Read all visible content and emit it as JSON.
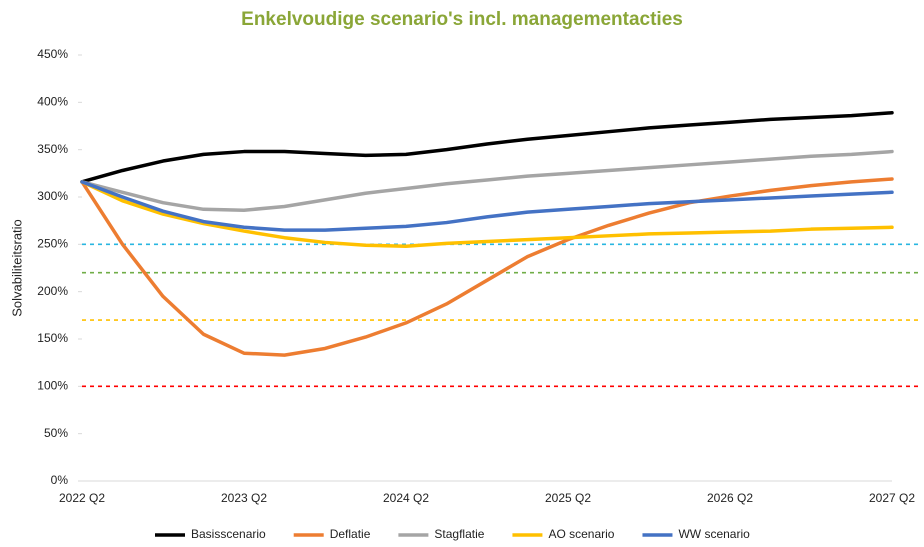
{
  "chart_data": {
    "type": "line",
    "title": "Enkelvoudige scenario's incl. managementacties",
    "y_label": "Solvabiliteitsratio",
    "categories": [
      "2022 Q2",
      null,
      null,
      null,
      "2023 Q2",
      null,
      null,
      null,
      "2024 Q2",
      null,
      null,
      null,
      "2025 Q2",
      null,
      null,
      null,
      "2026 Q2",
      null,
      null,
      null,
      "2027 Q2"
    ],
    "series": [
      {
        "name": "Basisscenario",
        "color": "#000000",
        "values": [
          316,
          328,
          338,
          345,
          348,
          348,
          346,
          344,
          345,
          350,
          356,
          361,
          365,
          369,
          373,
          376,
          379,
          382,
          384,
          386,
          389
        ]
      },
      {
        "name": "Deflatie",
        "color": "#ed7d31",
        "values": [
          316,
          250,
          195,
          155,
          135,
          133,
          140,
          152,
          167,
          187,
          212,
          237,
          255,
          270,
          283,
          294,
          301,
          307,
          312,
          316,
          319
        ]
      },
      {
        "name": "Stagflatie",
        "color": "#a5a5a5",
        "values": [
          316,
          305,
          294,
          287,
          286,
          290,
          297,
          304,
          309,
          314,
          318,
          322,
          325,
          328,
          331,
          334,
          337,
          340,
          343,
          345,
          348
        ]
      },
      {
        "name": "AO scenario",
        "color": "#ffc000",
        "values": [
          316,
          296,
          282,
          272,
          264,
          257,
          252,
          249,
          248,
          251,
          253,
          255,
          257,
          259,
          261,
          262,
          263,
          264,
          266,
          267,
          268
        ]
      },
      {
        "name": "WW scenario",
        "color": "#4472c4",
        "values": [
          316,
          300,
          285,
          274,
          268,
          265,
          265,
          267,
          269,
          273,
          279,
          284,
          287,
          290,
          293,
          295,
          297,
          299,
          301,
          303,
          305
        ]
      }
    ],
    "reference_lines": [
      {
        "value": 250,
        "color": "#29b6e0"
      },
      {
        "value": 220,
        "color": "#70ad47"
      },
      {
        "value": 170,
        "color": "#ffc000"
      },
      {
        "value": 100,
        "color": "#ff0000"
      }
    ],
    "ylim": [
      0,
      450
    ],
    "yticks": [
      {
        "value": 0,
        "label": "0%"
      },
      {
        "value": 50,
        "label": "50%"
      },
      {
        "value": 100,
        "label": "100%"
      },
      {
        "value": 150,
        "label": "150%"
      },
      {
        "value": 200,
        "label": "200%"
      },
      {
        "value": 250,
        "label": "250%"
      },
      {
        "value": 300,
        "label": "300%"
      },
      {
        "value": 350,
        "label": "350%"
      },
      {
        "value": 400,
        "label": "400%"
      },
      {
        "value": 450,
        "label": "450%"
      }
    ],
    "legend": "bottom"
  }
}
